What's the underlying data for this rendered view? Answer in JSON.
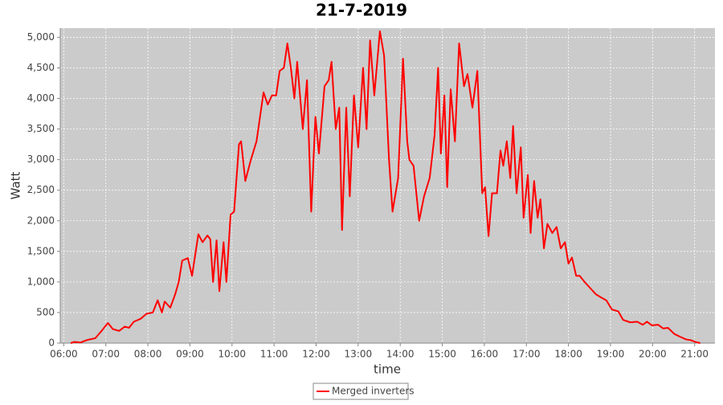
{
  "chart_data": {
    "type": "line",
    "title": "21-7-2019",
    "x_label": "time",
    "y_label": "Watt",
    "x": [
      "06:10",
      "06:15",
      "06:24",
      "06:33",
      "06:45",
      "06:54",
      "07:03",
      "07:10",
      "07:19",
      "07:27",
      "07:33",
      "07:40",
      "07:50",
      "07:58",
      "08:07",
      "08:14",
      "08:20",
      "08:24",
      "08:32",
      "08:39",
      "08:44",
      "08:49",
      "08:57",
      "09:03",
      "09:12",
      "09:18",
      "09:25",
      "09:29",
      "09:33",
      "09:38",
      "09:42",
      "09:48",
      "09:52",
      "09:58",
      "10:03",
      "10:10",
      "10:13",
      "10:19",
      "10:27",
      "10:35",
      "10:40",
      "10:45",
      "10:51",
      "10:57",
      "11:03",
      "11:08",
      "11:14",
      "11:19",
      "11:24",
      "11:29",
      "11:33",
      "11:41",
      "11:47",
      "11:53",
      "11:59",
      "12:04",
      "12:12",
      "12:18",
      "12:22",
      "12:28",
      "12:33",
      "12:37",
      "12:43",
      "12:48",
      "12:54",
      "13:00",
      "13:07",
      "13:12",
      "13:17",
      "13:23",
      "13:31",
      "13:37",
      "13:44",
      "13:49",
      "13:57",
      "14:04",
      "14:10",
      "14:13",
      "14:19",
      "14:27",
      "14:34",
      "14:42",
      "14:49",
      "14:54",
      "14:58",
      "15:03",
      "15:07",
      "15:12",
      "15:18",
      "15:24",
      "15:31",
      "15:36",
      "15:43",
      "15:50",
      "15:57",
      "16:01",
      "16:06",
      "16:11",
      "16:18",
      "16:23",
      "16:27",
      "16:32",
      "16:37",
      "16:41",
      "16:46",
      "16:52",
      "16:56",
      "17:02",
      "17:06",
      "17:11",
      "17:16",
      "17:20",
      "17:25",
      "17:30",
      "17:37",
      "17:43",
      "17:49",
      "17:55",
      "18:00",
      "18:05",
      "18:11",
      "18:16",
      "18:23",
      "18:31",
      "18:39",
      "18:46",
      "18:54",
      "19:02",
      "19:11",
      "19:18",
      "19:28",
      "19:38",
      "19:46",
      "19:52",
      "19:59",
      "20:08",
      "20:15",
      "20:22",
      "20:31",
      "20:40",
      "20:48",
      "20:54",
      "21:01",
      "21:08"
    ],
    "series": [
      {
        "name": "Merged inverters",
        "color": "#ff0000",
        "values": [
          0,
          20,
          10,
          50,
          80,
          200,
          330,
          230,
          200,
          270,
          250,
          350,
          400,
          480,
          500,
          700,
          500,
          680,
          580,
          800,
          1000,
          1350,
          1390,
          1100,
          1780,
          1650,
          1760,
          1700,
          1000,
          1680,
          850,
          1650,
          1000,
          2100,
          2150,
          3250,
          3300,
          2650,
          3000,
          3300,
          3700,
          4100,
          3900,
          4050,
          4050,
          4450,
          4500,
          4900,
          4500,
          4000,
          4600,
          3500,
          4300,
          2150,
          3700,
          3100,
          4200,
          4300,
          4600,
          3500,
          3850,
          1850,
          3850,
          2400,
          4050,
          3200,
          4500,
          3500,
          4950,
          4050,
          5100,
          4700,
          3000,
          2150,
          2700,
          4650,
          3300,
          3000,
          2900,
          2000,
          2400,
          2700,
          3400,
          4500,
          3100,
          4050,
          2550,
          4150,
          3300,
          4900,
          4200,
          4400,
          3850,
          4450,
          2450,
          2550,
          1750,
          2450,
          2450,
          3150,
          2900,
          3300,
          2700,
          3550,
          2450,
          3200,
          2050,
          2750,
          1800,
          2650,
          2050,
          2350,
          1550,
          1950,
          1800,
          1900,
          1550,
          1650,
          1300,
          1400,
          1100,
          1100,
          1000,
          900,
          800,
          750,
          700,
          550,
          520,
          380,
          340,
          350,
          300,
          350,
          290,
          300,
          240,
          250,
          150,
          100,
          60,
          50,
          20,
          0
        ]
      }
    ],
    "xlim": [
      "05:55",
      "21:29"
    ],
    "ylim": [
      0,
      5150
    ],
    "xticks": [
      "06:00",
      "07:00",
      "08:00",
      "09:00",
      "10:00",
      "11:00",
      "12:00",
      "13:00",
      "14:00",
      "15:00",
      "16:00",
      "17:00",
      "18:00",
      "19:00",
      "20:00",
      "21:00"
    ],
    "yticks": [
      0,
      500,
      {
        "value": 1000,
        "label": "1,000"
      },
      {
        "value": 1500,
        "label": "1,500"
      },
      {
        "value": 2000,
        "label": "2,000"
      },
      {
        "value": 2500,
        "label": "2,500"
      },
      {
        "value": 3000,
        "label": "3,000"
      },
      {
        "value": 3500,
        "label": "3,500"
      },
      {
        "value": 4000,
        "label": "4,000"
      },
      {
        "value": 4500,
        "label": "4,500"
      },
      {
        "value": 5000,
        "label": "5,000"
      }
    ],
    "grid": true,
    "legend": "bottom"
  }
}
